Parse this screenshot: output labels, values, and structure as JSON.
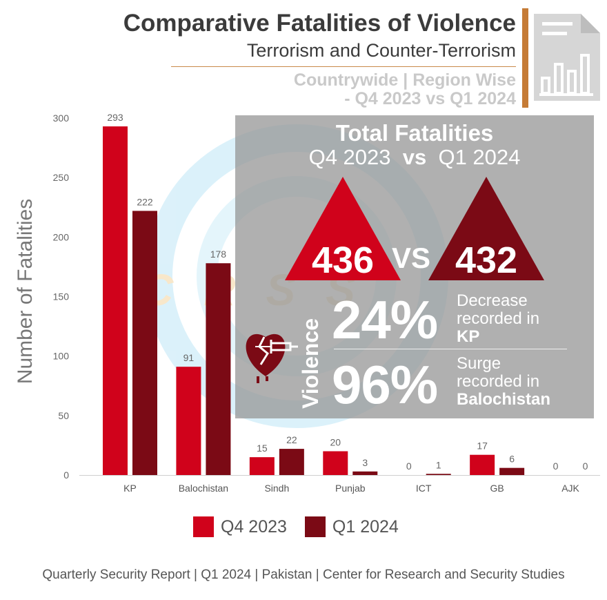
{
  "header": {
    "title": "Comparative Fatalities of Violence",
    "subtitle": "Terrorism and Counter-Terrorism",
    "scope_line1": "Countrywide | Region Wise",
    "scope_line2": "- Q4 2023 vs Q1 2024"
  },
  "chart_data": {
    "type": "bar",
    "categories": [
      "KP",
      "Balochistan",
      "Sindh",
      "Punjab",
      "ICT",
      "GB",
      "AJK"
    ],
    "series": [
      {
        "name": "Q4 2023",
        "values": [
          293,
          91,
          15,
          20,
          0,
          17,
          0
        ]
      },
      {
        "name": "Q1 2024",
        "values": [
          222,
          178,
          22,
          3,
          1,
          6,
          0
        ]
      }
    ],
    "title": "Comparative Fatalities of Violence",
    "xlabel": "",
    "ylabel": "Number of Fatalities",
    "ylim": [
      0,
      300
    ],
    "yticks": [
      0,
      50,
      100,
      150,
      200,
      250,
      300
    ],
    "grid": false,
    "legend": "bottom"
  },
  "colors": {
    "q4": "#d0021b",
    "q1": "#7b0a15",
    "accent": "#c57b36",
    "panel": "#969696"
  },
  "summary": {
    "title": "Total Fatalities",
    "left_period": "Q4 2023",
    "vs": "vs",
    "right_period": "Q1 2024",
    "left_total": "436",
    "right_total": "432",
    "mid_vs": "VS",
    "violence_label": "Violence",
    "stat1_value": "24%",
    "stat1_line1": "Decrease",
    "stat1_line2": "recorded in",
    "stat1_region": "KP",
    "stat2_value": "96%",
    "stat2_line1": "Surge",
    "stat2_line2": "recorded in",
    "stat2_region": "Balochistan"
  },
  "watermark": "CRSS",
  "icons": [
    "document-chart-icon",
    "broken-heart-syringe-icon"
  ],
  "footer": "Quarterly Security Report | Q1 2024 | Pakistan | Center for Research and Security Studies"
}
